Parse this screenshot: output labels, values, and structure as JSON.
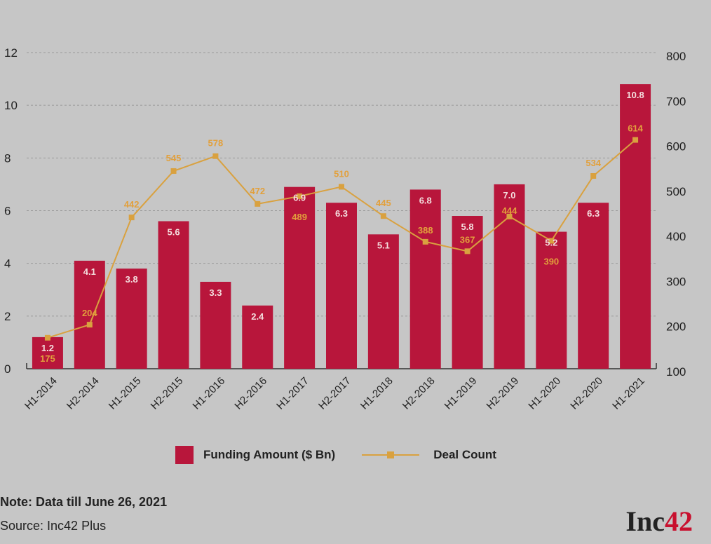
{
  "chart_data": {
    "type": "bar",
    "categories": [
      "H1-2014",
      "H2-2014",
      "H1-2015",
      "H2-2015",
      "H1-2016",
      "H2-2016",
      "H1-2017",
      "H2-2017",
      "H1-2018",
      "H2-2018",
      "H1-2019",
      "H2-2019",
      "H1-2020",
      "H2-2020",
      "H1-2021"
    ],
    "series": [
      {
        "name": "Funding Amount ($ Bn)",
        "type": "bar",
        "axis": "left",
        "values": [
          1.2,
          4.1,
          3.8,
          5.6,
          3.3,
          2.4,
          6.9,
          6.3,
          5.1,
          6.8,
          5.8,
          7.0,
          5.2,
          6.3,
          10.8
        ],
        "labels": [
          "1.2",
          "4.1",
          "3.8",
          "5.6",
          "3.3",
          "2.4",
          "6.9",
          "6.3",
          "5.1",
          "6.8",
          "5.8",
          "7.0",
          "5.2",
          "6.3",
          "10.8"
        ]
      },
      {
        "name": "Deal Count",
        "type": "line",
        "axis": "right",
        "values": [
          175,
          204,
          442,
          545,
          578,
          472,
          489,
          510,
          445,
          388,
          367,
          444,
          390,
          534,
          614
        ],
        "labels": [
          "175",
          "204",
          "442",
          "545",
          "578",
          "472",
          "489",
          "510",
          "445",
          "388",
          "367",
          "444",
          "390",
          "534",
          "614"
        ]
      }
    ],
    "y_left": {
      "min": 0,
      "max": 12,
      "ticks": [
        "0",
        "2",
        "4",
        "6",
        "8",
        "10",
        "12"
      ]
    },
    "y_right": {
      "min": 100,
      "max": 800,
      "ticks": [
        "100",
        "200",
        "300",
        "400",
        "500",
        "600",
        "700",
        "800"
      ]
    },
    "legend_position": "bottom",
    "grid": "horizontal dashed"
  },
  "colors": {
    "bar": "#b8163b",
    "line": "#d9a13f",
    "background": "#c6c6c6",
    "accent": "#c8102e"
  },
  "footer": {
    "note": "Note: Data till June 26, 2021",
    "source": "Source: Inc42 Plus",
    "brand_prefix": "Inc",
    "brand_suffix": "42"
  }
}
